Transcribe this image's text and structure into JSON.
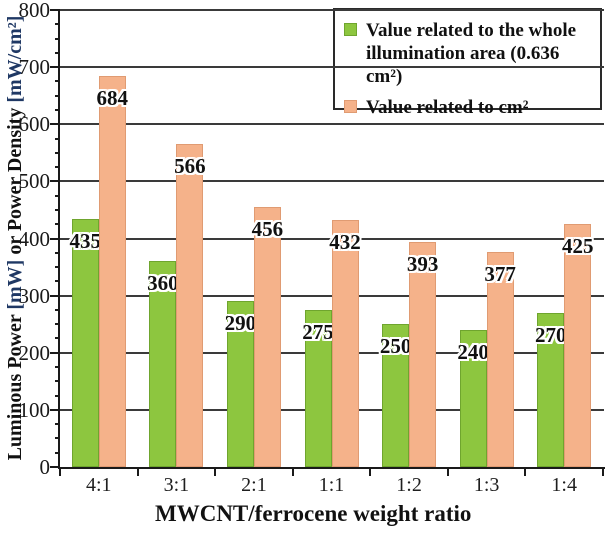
{
  "chart_data": {
    "type": "bar",
    "xlabel": "MWCNT/ferrocene weight ratio",
    "ylabel": "Luminous Power [mW] or Power Density [mW/cm²]",
    "ylabel_parts": [
      {
        "text": "Luminous Power ",
        "color": "#111111"
      },
      {
        "text": "[mW]",
        "color": "#1F3864"
      },
      {
        "text": " or Power Density ",
        "color": "#111111"
      },
      {
        "text": "[mW/cm²]",
        "color": "#1F3864"
      }
    ],
    "categories": [
      "4:1",
      "3:1",
      "2:1",
      "1:1",
      "1:2",
      "1:3",
      "1:4"
    ],
    "series": [
      {
        "name": "Value related to the whole illumination area (0.636 cm²)",
        "color": "#8DC63F",
        "border_color": "#6FA52E",
        "values": [
          435,
          360,
          290,
          275,
          250,
          240,
          270
        ]
      },
      {
        "name": "Value related to cm²",
        "color": "#F5B28A",
        "border_color": "#E09B72",
        "values": [
          684,
          566,
          456,
          432,
          393,
          377,
          425
        ]
      }
    ],
    "legend": {
      "position": "top-right",
      "entries": [
        {
          "lines": [
            "Value related to the whole",
            "illumination area (0.636 cm²)"
          ],
          "color": "#8DC63F",
          "border_color": "#6FA52E"
        },
        {
          "lines": [
            "Value related to cm²"
          ],
          "color": "#F5B28A",
          "border_color": "#E09B72"
        }
      ]
    },
    "ylim": [
      0,
      800
    ],
    "y_ticks": [
      0,
      100,
      200,
      300,
      400,
      500,
      600,
      700,
      800
    ],
    "y_major": 100,
    "y_minor": 25,
    "grid": true,
    "data_labels": true
  }
}
